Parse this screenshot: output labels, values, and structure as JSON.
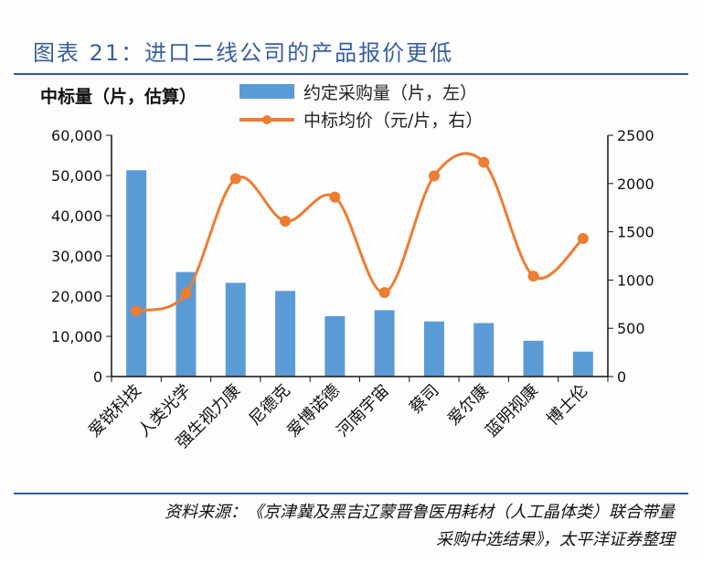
{
  "title": "图表 21：进口二线公司的产品报价更低",
  "source_line1": "资料来源：《京津冀及黑吉辽蒙晋鲁医用耗材（人工晶体类）联合带量",
  "source_line2": "采购中选结果》，太平洋证券整理",
  "chart_data": {
    "type": "bar+line",
    "ylabel": "中标量（片，估算）",
    "categories": [
      "爱锐科技",
      "人类光学",
      "强生视力康",
      "尼德克",
      "爱博诺德",
      "河南宇宙",
      "蔡司",
      "爱尔康",
      "蓝明视康",
      "博士伦"
    ],
    "series": [
      {
        "name": "约定采购量（片，左）",
        "type": "bar",
        "axis": "left",
        "color": "#5b9bd5",
        "values": [
          51300,
          26000,
          23300,
          21300,
          15000,
          16500,
          13700,
          13300,
          8900,
          6200
        ]
      },
      {
        "name": "中标均价（元/片，右）",
        "type": "line",
        "axis": "right",
        "color": "#ed7d31",
        "values": [
          680,
          860,
          2050,
          1610,
          1860,
          870,
          2080,
          2220,
          1040,
          1430
        ]
      }
    ],
    "left_axis": {
      "range": [
        0,
        60000
      ],
      "ticks": [
        "0",
        "10,000",
        "20,000",
        "30,000",
        "40,000",
        "50,000",
        "60,000"
      ]
    },
    "right_axis": {
      "range": [
        0,
        2500
      ],
      "ticks": [
        "0",
        "500",
        "1000",
        "1500",
        "2000",
        "2500"
      ]
    },
    "legend_position": "top",
    "grid": false
  }
}
